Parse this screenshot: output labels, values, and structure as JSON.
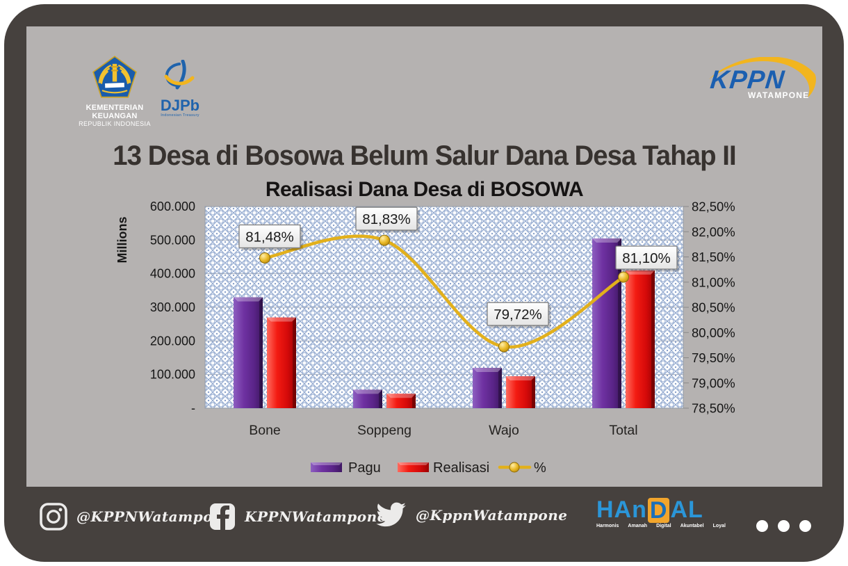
{
  "header": {
    "kemenkeu": {
      "line1": "KEMENTERIAN KEUANGAN",
      "line2": "REPUBLIK INDONESIA"
    },
    "djpb": {
      "word": "DJPb",
      "sub": "Indonesian Treasury"
    },
    "kppn": {
      "word": "KPPN",
      "sub": "WATAMPONE"
    }
  },
  "title": "13 Desa di Bosowa Belum Salur Dana Desa Tahap II",
  "chart_data": {
    "type": "combo-bar-line",
    "title": "Realisasi Dana Desa di BOSOWA",
    "categories": [
      "Bone",
      "Soppeng",
      "Wajo",
      "Total"
    ],
    "series": [
      {
        "name": "Pagu",
        "type": "bar",
        "color": "#6a30a0",
        "values": [
          330000,
          55000,
          120000,
          505000
        ]
      },
      {
        "name": "Realisasi",
        "type": "bar",
        "color": "#ee1111",
        "values": [
          270000,
          43000,
          95000,
          410000
        ]
      },
      {
        "name": "%",
        "type": "line",
        "color": "#e2b01c",
        "values": [
          81.48,
          81.83,
          79.72,
          81.1
        ],
        "point_labels": [
          "81,48%",
          "81,83%",
          "79,72%",
          "81,10%"
        ]
      }
    ],
    "left_axis": {
      "label": "Millions",
      "min": 0,
      "max": 600000,
      "ticks": [
        "600.000",
        "500.000",
        "400.000",
        "300.000",
        "200.000",
        "100.000",
        "-"
      ]
    },
    "right_axis": {
      "min": 78.5,
      "max": 82.5,
      "ticks": [
        "82,50%",
        "82,00%",
        "81,50%",
        "81,00%",
        "80,50%",
        "80,00%",
        "79,50%",
        "79,00%",
        "78,50%"
      ]
    },
    "legend": [
      "Pagu",
      "Realisasi",
      "%"
    ],
    "grid": true,
    "legend_position": "bottom",
    "plot_pattern": "blue diamond lattice"
  },
  "footer": {
    "instagram_handle": "@KPPNWatampone",
    "facebook_handle": "KPPNWatampone",
    "twitter_handle": "@KppnWatampone",
    "handal": {
      "part1": "HAn",
      "part2": "D",
      "part3": "AL",
      "values": [
        "Harmonis",
        "Amanah",
        "Digital",
        "Akuntabel",
        "Loyal"
      ]
    }
  },
  "colors": {
    "frame": "#46413e",
    "panel": "#b5b2b1",
    "bar_pagu": "#6a30a0",
    "bar_realisasi": "#ee1111",
    "line_percent": "#e2b01c",
    "lattice_blue": "#8ba3cc",
    "logo_blue": "#1b5fb0",
    "logo_yellow": "#f2b51e"
  }
}
